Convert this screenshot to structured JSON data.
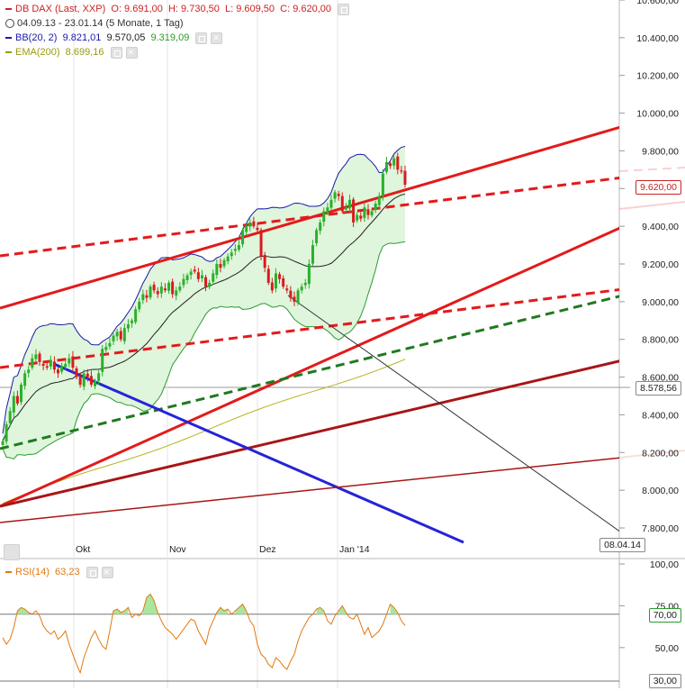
{
  "legend": {
    "main": {
      "name": "DB DAX (Last, XXP)",
      "ohlc": "O: 9.691,00  H: 9.730,50  L: 9.609,50  C: 9.620,00",
      "range": "04.09.13 - 23.01.14 (5 Monate, 1 Tag)",
      "color": "#cc2222"
    },
    "bb": {
      "name": "BB(20, 2)",
      "upper": "9.821,01",
      "mid": "9.570,05",
      "lower": "9.319,09",
      "color_name": "#1a1aa8",
      "color_upper": "#1a1aa8",
      "color_mid": "#222222",
      "color_lower": "#2e9a2e"
    },
    "ema": {
      "name": "EMA(200)",
      "value": "8.699,16",
      "color": "#9a9a10"
    },
    "rsi": {
      "name": "RSI(14)",
      "value": "63,23",
      "color": "#e07a10"
    }
  },
  "price_tags": {
    "last": "9.620,00",
    "line": "8.578,56",
    "date": "08.04.14",
    "rsi_70": "70,00",
    "rsi_30": "30,00"
  },
  "chart_data": [
    {
      "type": "candlestick",
      "title": "DB DAX (Last, XXP)",
      "x_ticks": [
        "Okt",
        "Nov",
        "Dez",
        "Jan '14"
      ],
      "y_ticks": [
        "10.600,00",
        "10.400,00",
        "10.200,00",
        "10.000,00",
        "9.800,00",
        "9.600,00",
        "9.400,00",
        "9.200,00",
        "9.000,00",
        "8.800,00",
        "8.600,00",
        "8.400,00",
        "8.200,00",
        "8.000,00",
        "7.800,00"
      ],
      "ylim": [
        7770,
        10600
      ],
      "date_range": [
        "2013-09-04",
        "2014-01-23"
      ],
      "last_close": 9620.0,
      "ohlc_last": {
        "open": 9691.0,
        "high": 9730.5,
        "low": 9609.5,
        "close": 9620.0
      },
      "closes_approx": [
        8260,
        8350,
        8420,
        8500,
        8460,
        8560,
        8620,
        8640,
        8700,
        8720,
        8680,
        8660,
        8650,
        8690,
        8640,
        8620,
        8660,
        8670,
        8700,
        8650,
        8600,
        8560,
        8620,
        8600,
        8560,
        8580,
        8620,
        8750,
        8760,
        8780,
        8820,
        8840,
        8800,
        8860,
        8880,
        8900,
        8960,
        9000,
        9040,
        9020,
        9080,
        9060,
        9040,
        9080,
        9060,
        9100,
        9040,
        9060,
        9080,
        9120,
        9140,
        9160,
        9160,
        9120,
        9140,
        9080,
        9100,
        9150,
        9200,
        9180,
        9220,
        9240,
        9260,
        9280,
        9300,
        9380,
        9400,
        9420,
        9400,
        9380,
        9240,
        9180,
        9100,
        9060,
        9150,
        9120,
        9080,
        9060,
        9020,
        9000,
        9060,
        9080,
        9100,
        9200,
        9300,
        9380,
        9420,
        9480,
        9500,
        9540,
        9580,
        9560,
        9480,
        9500,
        9540,
        9420,
        9460,
        9440,
        9500,
        9460,
        9480,
        9520,
        9560,
        9680,
        9740,
        9720,
        9760,
        9700,
        9690,
        9620
      ],
      "bollinger": {
        "period": 20,
        "stddev": 2,
        "upper_last": 9821.01,
        "middle_last": 9570.05,
        "lower_last": 9319.09
      },
      "ema200_last": 8699.16,
      "horizontal_line": 8578.56,
      "projection_date": "08.04.14",
      "trendlines": [
        {
          "style": "solid",
          "color": "#e31a1a"
        },
        {
          "style": "solid",
          "color": "#e31a1a"
        },
        {
          "style": "dashed",
          "color": "#e31a1a"
        },
        {
          "style": "dashed",
          "color": "#e31a1a"
        },
        {
          "style": "dashed",
          "color": "#1f7a1f"
        },
        {
          "style": "solid",
          "color": "#a81515"
        },
        {
          "style": "solid",
          "color": "#2424d8"
        },
        {
          "style": "solid",
          "color": "#333333"
        }
      ]
    },
    {
      "type": "line",
      "title": "RSI(14)",
      "y_ticks": [
        "100,00",
        "75,00",
        "70,00",
        "50,00",
        "30,00"
      ],
      "ylim": [
        30,
        100
      ],
      "last_value": 63.23,
      "levels": [
        70,
        30
      ],
      "values_approx": [
        56,
        52,
        55,
        62,
        72,
        74,
        73,
        71,
        70,
        72,
        69,
        63,
        60,
        58,
        60,
        55,
        57,
        60,
        52,
        46,
        40,
        35,
        44,
        50,
        56,
        60,
        55,
        51,
        49,
        60,
        72,
        73,
        71,
        72,
        74,
        68,
        70,
        69,
        72,
        80,
        82,
        78,
        71,
        66,
        62,
        60,
        58,
        55,
        58,
        61,
        64,
        67,
        66,
        60,
        56,
        52,
        61,
        66,
        71,
        74,
        72,
        73,
        70,
        72,
        74,
        76,
        72,
        66,
        63,
        52,
        46,
        44,
        40,
        38,
        44,
        42,
        39,
        37,
        42,
        46,
        54,
        60,
        64,
        68,
        70,
        73,
        74,
        72,
        66,
        64,
        69,
        72,
        75,
        71,
        68,
        67,
        70,
        64,
        58,
        62,
        56,
        58,
        60,
        64,
        70,
        76,
        74,
        71,
        66,
        63.23
      ]
    }
  ]
}
